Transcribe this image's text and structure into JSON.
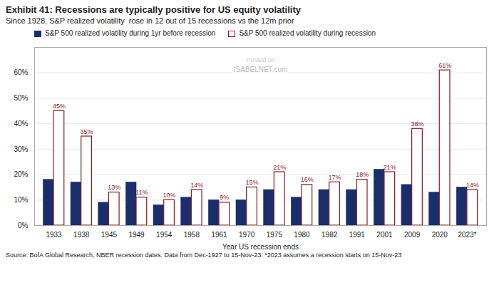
{
  "chart_data": {
    "type": "bar",
    "title": "Exhibit 41: Recessions are typically positive for US equity volatility",
    "subtitle": "Since 1928, S&P realized volatility  rose in 12 out of 15 recessions vs the 12m prior",
    "xlabel": "Year US recession ends",
    "categories": [
      "1933",
      "1938",
      "1945",
      "1949",
      "1954",
      "1958",
      "1961",
      "1970",
      "1975",
      "1980",
      "1982",
      "1991",
      "2001",
      "2009",
      "2020",
      "2023*"
    ],
    "series": [
      {
        "name": "S&P 500 realized volatility during 1yr before recession",
        "color": "#1a2e6c",
        "values": [
          18,
          17,
          9,
          17,
          8,
          11,
          10,
          10,
          14,
          11,
          14,
          14,
          22,
          16,
          13,
          15
        ]
      },
      {
        "name": "S&P 500 realized volatility during recession",
        "color": "#8b1a1a",
        "values": [
          45,
          35,
          13,
          11,
          10,
          14,
          9,
          15,
          21,
          16,
          17,
          18,
          21,
          38,
          61,
          14
        ],
        "value_labels": [
          "45%",
          "35%",
          "13%",
          "11%",
          "10%",
          "14%",
          "9%",
          "15%",
          "21%",
          "16%",
          "17%",
          "18%",
          "21%",
          "38%",
          "61%",
          "14%"
        ],
        "data_labels": true
      }
    ],
    "ylim": [
      0,
      70
    ],
    "yticks": [
      {
        "value": 0,
        "label": "0%"
      },
      {
        "value": 10,
        "label": "10%"
      },
      {
        "value": 20,
        "label": "20%"
      },
      {
        "value": 30,
        "label": "30%"
      },
      {
        "value": 40,
        "label": "40%"
      },
      {
        "value": 50,
        "label": "50%"
      },
      {
        "value": 60,
        "label": "60%"
      }
    ],
    "grid": true,
    "legend": "upper left",
    "annotations": [
      "Posted on",
      "ISABELNET.com"
    ],
    "source": "Source: BofA Global Research, NBER recession dates. Data from Dec-1927 to 15-Nov-23. *2023 assumes a recession starts on 15-Nov-23"
  }
}
